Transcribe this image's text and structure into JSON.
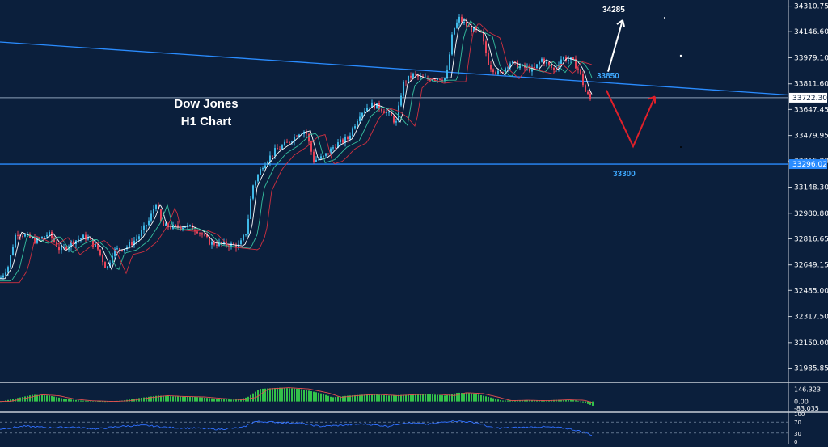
{
  "chart_data": [
    {
      "type": "candlestick",
      "title_line1": "Dow Jones",
      "title_line2": "H1 Chart",
      "ylim": [
        31900,
        34350
      ],
      "y_ticks": [
        "34310.75",
        "34146.60",
        "33979.10",
        "33811.60",
        "33647.45",
        "33479.95",
        "33315.80",
        "33148.30",
        "32980.80",
        "32816.65",
        "32649.15",
        "32485.00",
        "32317.50",
        "32150.00",
        "31985.85"
      ],
      "y_tick_values": [
        34310.75,
        34146.6,
        33979.1,
        33811.6,
        33647.45,
        33479.95,
        33315.8,
        33148.3,
        32980.8,
        32816.65,
        32649.15,
        32485.0,
        32317.5,
        32150.0,
        31985.85
      ],
      "current_price_label": "33722.30",
      "current_price": 33722.3,
      "support_label": "33296.02",
      "support_price": 33296.02,
      "annotations": {
        "resistance_text": "33850",
        "support_text": "33300",
        "target_text": "34285"
      },
      "trendline": {
        "start_price": 34080,
        "end_price": 33740
      },
      "keypoints": [
        {
          "x": 0,
          "p": 32560
        },
        {
          "x": 10,
          "p": 32640
        },
        {
          "x": 20,
          "p": 32860
        },
        {
          "x": 30,
          "p": 32840
        },
        {
          "x": 45,
          "p": 32800
        },
        {
          "x": 60,
          "p": 32850
        },
        {
          "x": 75,
          "p": 32740
        },
        {
          "x": 90,
          "p": 32800
        },
        {
          "x": 105,
          "p": 32830
        },
        {
          "x": 120,
          "p": 32760
        },
        {
          "x": 132,
          "p": 32620
        },
        {
          "x": 140,
          "p": 32740
        },
        {
          "x": 155,
          "p": 32760
        },
        {
          "x": 170,
          "p": 32820
        },
        {
          "x": 185,
          "p": 32940
        },
        {
          "x": 193,
          "p": 33050
        },
        {
          "x": 200,
          "p": 32900
        },
        {
          "x": 215,
          "p": 32890
        },
        {
          "x": 230,
          "p": 32900
        },
        {
          "x": 245,
          "p": 32870
        },
        {
          "x": 260,
          "p": 32790
        },
        {
          "x": 280,
          "p": 32780
        },
        {
          "x": 296,
          "p": 32770
        },
        {
          "x": 305,
          "p": 32870
        },
        {
          "x": 312,
          "p": 33150
        },
        {
          "x": 325,
          "p": 33290
        },
        {
          "x": 340,
          "p": 33380
        },
        {
          "x": 355,
          "p": 33430
        },
        {
          "x": 370,
          "p": 33500
        },
        {
          "x": 378,
          "p": 33510
        },
        {
          "x": 388,
          "p": 33320
        },
        {
          "x": 400,
          "p": 33340
        },
        {
          "x": 415,
          "p": 33420
        },
        {
          "x": 430,
          "p": 33460
        },
        {
          "x": 445,
          "p": 33620
        },
        {
          "x": 458,
          "p": 33680
        },
        {
          "x": 470,
          "p": 33660
        },
        {
          "x": 480,
          "p": 33620
        },
        {
          "x": 490,
          "p": 33560
        },
        {
          "x": 498,
          "p": 33810
        },
        {
          "x": 510,
          "p": 33870
        },
        {
          "x": 525,
          "p": 33840
        },
        {
          "x": 540,
          "p": 33850
        },
        {
          "x": 552,
          "p": 33850
        },
        {
          "x": 560,
          "p": 34150
        },
        {
          "x": 568,
          "p": 34230
        },
        {
          "x": 580,
          "p": 34170
        },
        {
          "x": 595,
          "p": 34130
        },
        {
          "x": 605,
          "p": 33930
        },
        {
          "x": 618,
          "p": 33870
        },
        {
          "x": 630,
          "p": 33950
        },
        {
          "x": 645,
          "p": 33920
        },
        {
          "x": 660,
          "p": 33900
        },
        {
          "x": 670,
          "p": 33970
        },
        {
          "x": 685,
          "p": 33900
        },
        {
          "x": 695,
          "p": 33980
        },
        {
          "x": 708,
          "p": 33960
        },
        {
          "x": 716,
          "p": 33900
        },
        {
          "x": 724,
          "p": 33760
        },
        {
          "x": 732,
          "p": 33700
        }
      ],
      "projection_up": [
        {
          "x": 752,
          "p": 33890
        },
        {
          "x": 770,
          "p": 34220
        }
      ],
      "projection_down_up": [
        {
          "x": 750,
          "p": 33770
        },
        {
          "x": 783,
          "p": 33410
        },
        {
          "x": 810,
          "p": 33730
        }
      ]
    },
    {
      "type": "bar",
      "indicator": "histogram",
      "y_ticks": [
        "146.323",
        "0.00",
        "-83.035"
      ],
      "ylim": [
        -120,
        200
      ],
      "points": [
        {
          "x": 0,
          "v": 0
        },
        {
          "x": 20,
          "v": 40
        },
        {
          "x": 40,
          "v": 80
        },
        {
          "x": 60,
          "v": 70
        },
        {
          "x": 80,
          "v": 30
        },
        {
          "x": 100,
          "v": 10
        },
        {
          "x": 130,
          "v": 0
        },
        {
          "x": 150,
          "v": 10
        },
        {
          "x": 170,
          "v": 40
        },
        {
          "x": 195,
          "v": 70
        },
        {
          "x": 215,
          "v": 60
        },
        {
          "x": 240,
          "v": 55
        },
        {
          "x": 265,
          "v": 35
        },
        {
          "x": 290,
          "v": 20
        },
        {
          "x": 305,
          "v": 50
        },
        {
          "x": 320,
          "v": 150
        },
        {
          "x": 345,
          "v": 165
        },
        {
          "x": 370,
          "v": 150
        },
        {
          "x": 395,
          "v": 100
        },
        {
          "x": 410,
          "v": 50
        },
        {
          "x": 430,
          "v": 70
        },
        {
          "x": 455,
          "v": 85
        },
        {
          "x": 480,
          "v": 70
        },
        {
          "x": 500,
          "v": 80
        },
        {
          "x": 525,
          "v": 90
        },
        {
          "x": 550,
          "v": 70
        },
        {
          "x": 565,
          "v": 105
        },
        {
          "x": 585,
          "v": 95
        },
        {
          "x": 605,
          "v": 50
        },
        {
          "x": 620,
          "v": 10
        },
        {
          "x": 640,
          "v": 15
        },
        {
          "x": 665,
          "v": 10
        },
        {
          "x": 690,
          "v": 20
        },
        {
          "x": 710,
          "v": 15
        },
        {
          "x": 720,
          "v": -10
        },
        {
          "x": 733,
          "v": -55
        }
      ]
    },
    {
      "type": "line",
      "indicator": "oscillator",
      "y_ticks": [
        "100",
        "70",
        "30",
        "0"
      ],
      "ylim": [
        0,
        100
      ],
      "points": [
        {
          "x": 0,
          "v": 45
        },
        {
          "x": 30,
          "v": 55
        },
        {
          "x": 60,
          "v": 50
        },
        {
          "x": 90,
          "v": 52
        },
        {
          "x": 120,
          "v": 45
        },
        {
          "x": 150,
          "v": 55
        },
        {
          "x": 180,
          "v": 58
        },
        {
          "x": 210,
          "v": 50
        },
        {
          "x": 240,
          "v": 48
        },
        {
          "x": 270,
          "v": 44
        },
        {
          "x": 300,
          "v": 50
        },
        {
          "x": 315,
          "v": 72
        },
        {
          "x": 340,
          "v": 70
        },
        {
          "x": 370,
          "v": 66
        },
        {
          "x": 395,
          "v": 55
        },
        {
          "x": 420,
          "v": 58
        },
        {
          "x": 450,
          "v": 64
        },
        {
          "x": 480,
          "v": 55
        },
        {
          "x": 500,
          "v": 68
        },
        {
          "x": 530,
          "v": 62
        },
        {
          "x": 560,
          "v": 75
        },
        {
          "x": 590,
          "v": 68
        },
        {
          "x": 610,
          "v": 48
        },
        {
          "x": 640,
          "v": 50
        },
        {
          "x": 670,
          "v": 53
        },
        {
          "x": 700,
          "v": 48
        },
        {
          "x": 720,
          "v": 35
        },
        {
          "x": 733,
          "v": 22
        }
      ]
    }
  ],
  "colors": {
    "background": "#0b1f3c",
    "bull": "#3fb9e8",
    "bear": "#e8455a",
    "trend": "#2a8cff",
    "hline": "#8da0b8",
    "projection_up": "#ffffff",
    "projection_down": "#e0202a",
    "histogram": "#33c24a",
    "histogram_signal": "#e05050",
    "oscillator": "#3070ff",
    "axis_text": "#ffffff",
    "annotation": "#3fa9ff"
  }
}
